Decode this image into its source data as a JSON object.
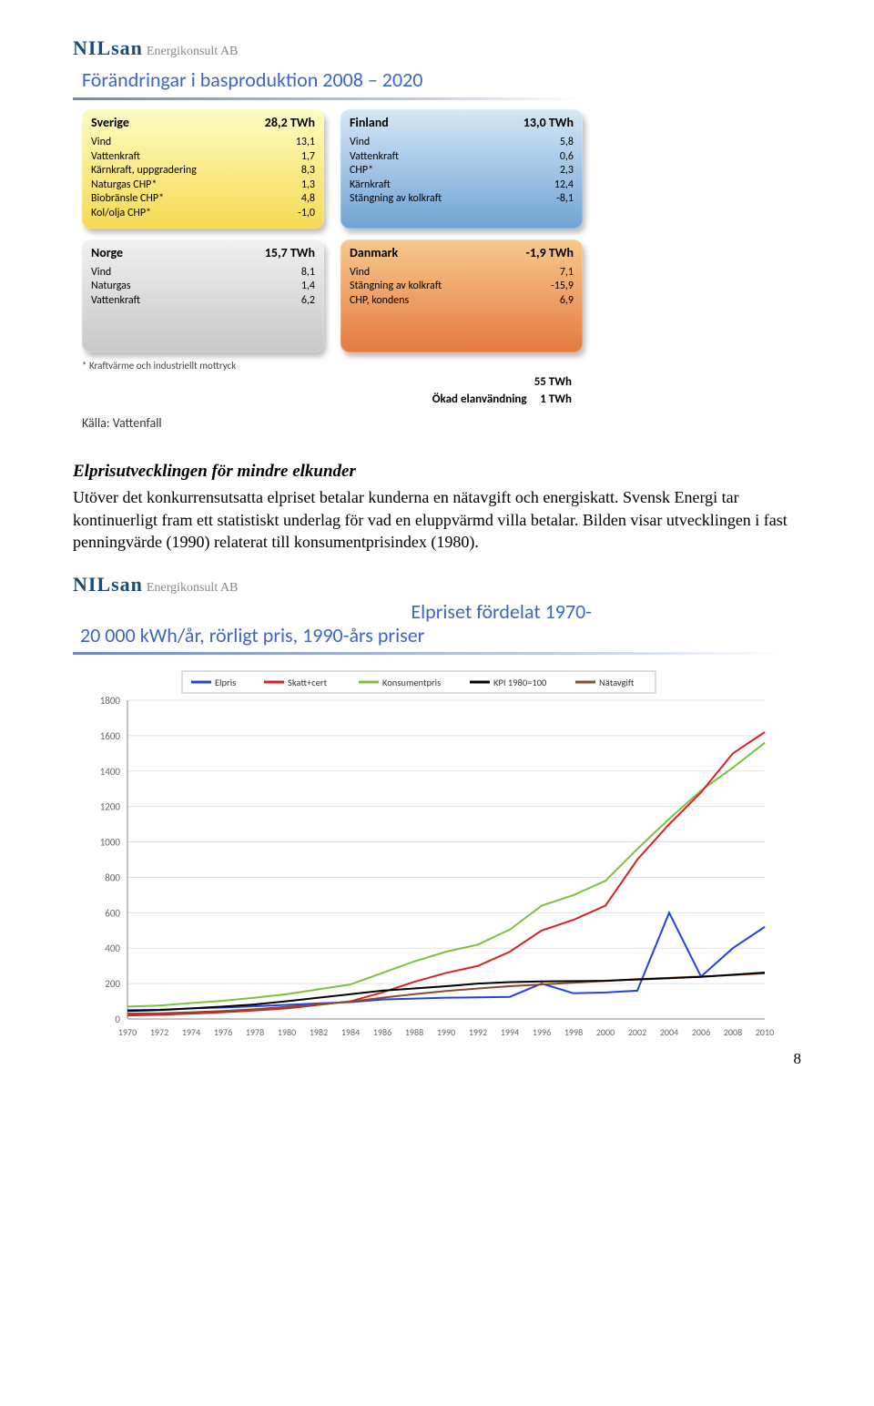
{
  "logo": {
    "main": "NILsan",
    "sub": "Energikonsult AB"
  },
  "slide": {
    "title": "Förändringar i basproduktion 2008 – 2020",
    "underline_gradient": [
      "#6a8ac4",
      "#c4cfe6"
    ],
    "panels": [
      {
        "key": "sv",
        "country": "Sverige",
        "total": "28,2 TWh",
        "bg": [
          "#fdfcc3",
          "#f6da52"
        ],
        "rows": [
          [
            "Vind",
            "13,1"
          ],
          [
            "Vattenkraft",
            "1,7"
          ],
          [
            "Kärnkraft, uppgradering",
            "8,3"
          ],
          [
            "Naturgas CHP*",
            "1,3"
          ],
          [
            "Biobränsle CHP*",
            "4,8"
          ],
          [
            "Kol/olja CHP*",
            "-1,0"
          ]
        ]
      },
      {
        "key": "fi",
        "country": "Finland",
        "total": "13,0 TWh",
        "bg": [
          "#d6e8f5",
          "#6fa3d6"
        ],
        "rows": [
          [
            "Vind",
            "5,8"
          ],
          [
            "Vattenkraft",
            "0,6"
          ],
          [
            "CHP*",
            "2,3"
          ],
          [
            "Kärnkraft",
            "12,4"
          ],
          [
            "Stängning av kolkraft",
            "-8,1"
          ]
        ]
      },
      {
        "key": "no",
        "country": "Norge",
        "total": "15,7 TWh",
        "bg": [
          "#f0f0f0",
          "#c8c8c8"
        ],
        "rows": [
          [
            "Vind",
            "8,1"
          ],
          [
            "Naturgas",
            "1,4"
          ],
          [
            "Vattenkraft",
            "6,2"
          ]
        ]
      },
      {
        "key": "dk",
        "country": "Danmark",
        "total": "-1,9 TWh",
        "bg": [
          "#f7c98e",
          "#e57a3f"
        ],
        "rows": [
          [
            "Vind",
            "7,1"
          ],
          [
            "Stängning av kolkraft",
            "-15,9"
          ],
          [
            "CHP, kondens",
            "6,9"
          ]
        ]
      }
    ],
    "footnote": "* Kraftvärme och industriellt mottryck",
    "totals_right": "55 TWh",
    "usage_label": "Ökad elanvändning",
    "usage_value": "1 TWh",
    "source": "Källa: Vattenfall"
  },
  "body": {
    "heading": "Elprisutvecklingen för mindre elkunder",
    "para": "Utöver det konkurrensutsatta elpriset betalar kunderna en nätavgift och energiskatt. Svensk Energi tar kontinuerligt fram ett statistiskt underlag för vad en eluppvärmd villa betalar. Bilden visar utvecklingen i fast penningvärde (1990) relaterat till konsumentprisindex (1980)."
  },
  "chart": {
    "title_1": "Elpriset fördelat 1970-",
    "title_2": "20 000 kWh/år, rörligt pris, 1990-års priser",
    "legend": [
      {
        "label": "Elpris",
        "color": "#2244dd"
      },
      {
        "label": "Skatt+cert",
        "color": "#d62222"
      },
      {
        "label": "Konsumentpris",
        "color": "#7fbf3f"
      },
      {
        "label": "KPI 1980=100",
        "color": "#000000"
      },
      {
        "label": "Nätavgift",
        "color": "#8b4a2a"
      }
    ],
    "x_years": [
      1970,
      1972,
      1974,
      1976,
      1978,
      1980,
      1982,
      1984,
      1986,
      1988,
      1990,
      1992,
      1994,
      1996,
      1998,
      2000,
      2002,
      2004,
      2006,
      2008,
      2010
    ],
    "y": {
      "min": 0,
      "max": 1800,
      "step": 200
    },
    "grid_color": "#e4e4e4",
    "axis_color": "#888888",
    "background": "#ffffff",
    "line_width": 2,
    "series": {
      "elpris": [
        50,
        52,
        60,
        65,
        72,
        80,
        88,
        95,
        110,
        115,
        120,
        122,
        125,
        200,
        145,
        150,
        160,
        600,
        240,
        400,
        520
      ],
      "skatt": [
        20,
        24,
        30,
        38,
        48,
        60,
        80,
        100,
        150,
        210,
        260,
        300,
        380,
        500,
        560,
        640,
        900,
        1100,
        1280,
        1500,
        1620
      ],
      "konsument": [
        70,
        76,
        90,
        103,
        120,
        140,
        168,
        195,
        260,
        325,
        380,
        420,
        505,
        640,
        700,
        780,
        960,
        1130,
        1290,
        1420,
        1560
      ],
      "kpi": [
        45,
        50,
        60,
        70,
        82,
        100,
        120,
        140,
        160,
        172,
        185,
        200,
        208,
        212,
        214,
        216,
        223,
        230,
        238,
        250,
        262
      ],
      "natavgift": [
        30,
        32,
        38,
        45,
        55,
        68,
        82,
        98,
        120,
        140,
        158,
        172,
        185,
        195,
        205,
        215,
        225,
        232,
        240,
        248,
        258
      ]
    }
  },
  "page_number": "8"
}
